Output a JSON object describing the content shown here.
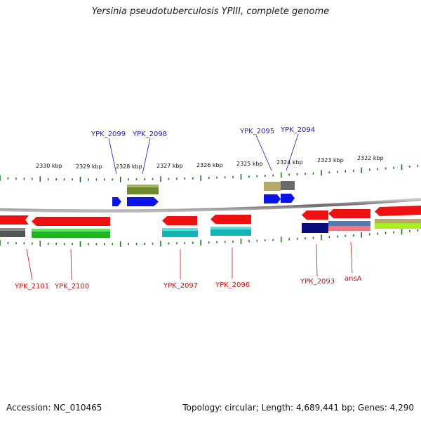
{
  "title": "Yersinia pseudotuberculosis YPIII, complete genome",
  "footer": {
    "accession": "Accession: NC_010465",
    "summary": "Topology: circular; Length: 4,689,441 bp; Genes: 4,290"
  },
  "colors": {
    "backbone": "#8c8c8c",
    "tick": "#1a7a1a",
    "label_top": "#1a1acc",
    "label_bottom": "#cc1111"
  },
  "scale_labels": [
    "2330 kbp",
    "2329 kbp",
    "2328 kbp",
    "2327 kbp",
    "2326 kbp",
    "2325 kbp",
    "2324 kbp",
    "2323 kbp",
    "2322 kbp"
  ],
  "top_labels": [
    "YPK_2099",
    "YPK_2098",
    "YPK_2095",
    "YPK_2094"
  ],
  "bottom_labels": [
    "YPK_2101",
    "YPK_2100",
    "YPK_2097",
    "YPK_2096",
    "YPK_2093",
    "ansA"
  ]
}
